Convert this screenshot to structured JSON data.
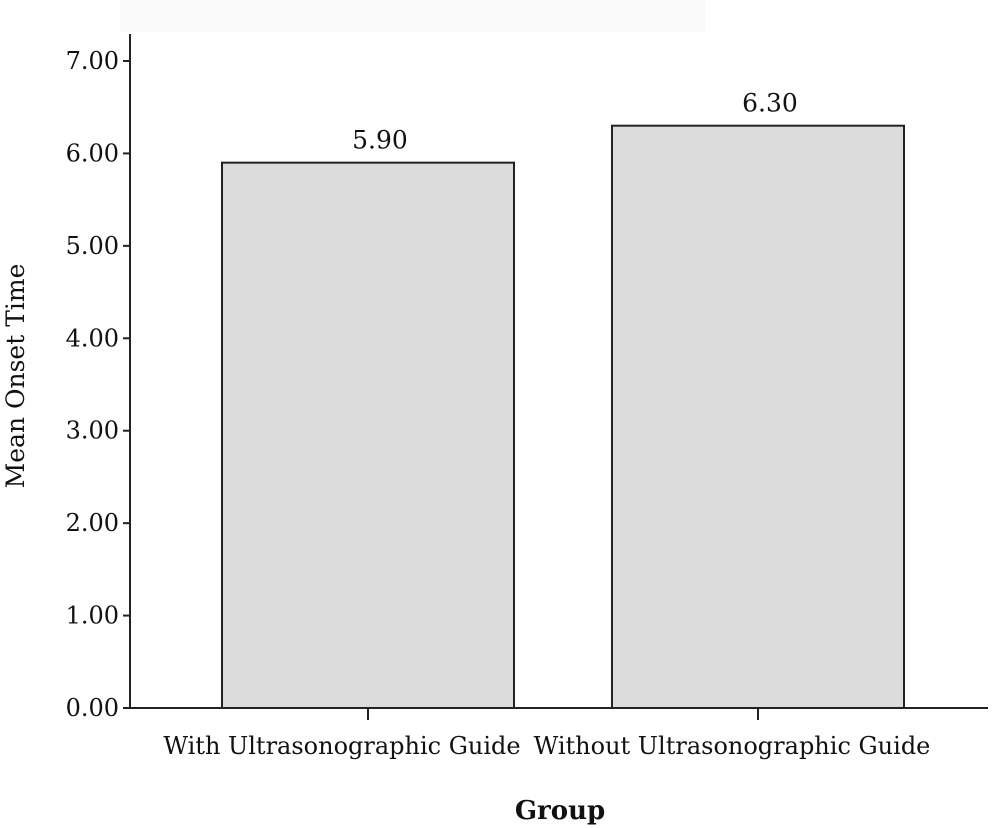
{
  "chart_data": {
    "type": "bar",
    "categories": [
      "With Ultrasonographic Guide",
      "Without Ultrasonographic Guide"
    ],
    "values": [
      5.9,
      6.3
    ],
    "data_labels": [
      "5.90",
      "6.30"
    ],
    "title": "",
    "xlabel": "Group",
    "ylabel": "Mean Onset Time",
    "ylim": [
      0,
      7
    ],
    "yticks": [
      0,
      1,
      2,
      3,
      4,
      5,
      6,
      7
    ],
    "ytick_labels": [
      "0.00",
      "1.00",
      "2.00",
      "3.00",
      "4.00",
      "5.00",
      "6.00",
      "7.00"
    ],
    "grid": false,
    "legend": "none",
    "colors": {
      "bar_fill": "#dcdcdc",
      "bar_stroke": "#222222",
      "axis": "#222222",
      "text": "#111111"
    }
  }
}
